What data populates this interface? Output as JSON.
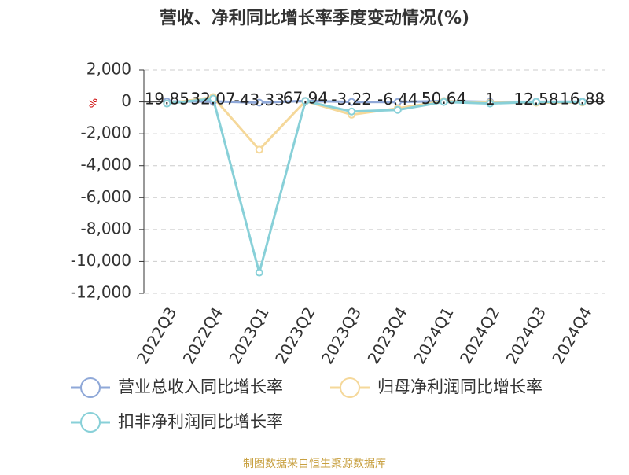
{
  "chart_data": {
    "type": "line",
    "title": "营收、净利同比增长率季度变动情况(%)",
    "y_label": "%",
    "categories": [
      "2022Q3",
      "2022Q4",
      "2023Q1",
      "2023Q2",
      "2023Q3",
      "2023Q4",
      "2024Q1",
      "2024Q2",
      "2024Q3",
      "2024Q4"
    ],
    "series": [
      {
        "name": "营业总收入同比增长率",
        "color": "#8fa8d8",
        "values": [
          19.85,
          32.07,
          -43.33,
          67.94,
          -3.22,
          -6.44,
          50.64,
          1,
          12.58,
          16.88
        ]
      },
      {
        "name": "归母净利润同比增长率",
        "color": "#f5d89a",
        "values": [
          -100,
          300,
          -3000,
          50,
          -800,
          -400,
          50,
          -50,
          -50,
          -30
        ]
      },
      {
        "name": "扣非净利润同比增长率",
        "color": "#88d0d8",
        "values": [
          -100,
          200,
          -10700,
          50,
          -600,
          -500,
          0,
          -100,
          0,
          0
        ]
      }
    ],
    "ylim": [
      -12000,
      2000
    ],
    "yticks": [
      {
        "value": -12000,
        "label": "-12,000"
      },
      {
        "value": -10000,
        "label": "-10,000"
      },
      {
        "value": -8000,
        "label": "-8,000"
      },
      {
        "value": -6000,
        "label": "-6,000"
      },
      {
        "value": -4000,
        "label": "-4,000"
      },
      {
        "value": -2000,
        "label": "-2,000"
      },
      0,
      {
        "value": 2000,
        "label": "2,000"
      }
    ],
    "grid": true,
    "source": "制图数据来自恒生聚源数据库"
  }
}
